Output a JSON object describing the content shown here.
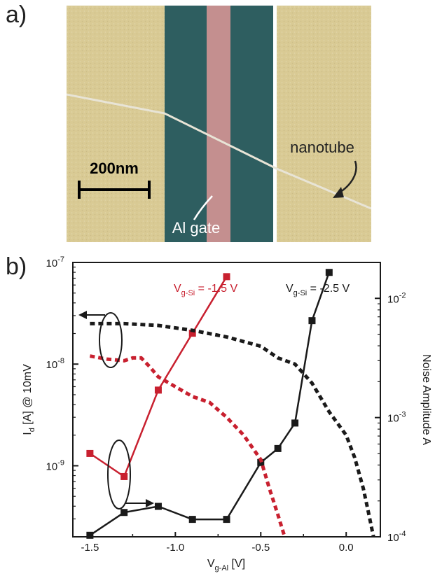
{
  "panel_a": {
    "label": "a)",
    "scale_bar_label": "200nm",
    "nanotube_label": "nanotube",
    "gate_label": "Al gate",
    "colors": {
      "electrode": "#d9ca94",
      "gap": "#2e5e60",
      "gate": "#c48f8f",
      "nanotube": "#e8e4d6"
    }
  },
  "panel_b": {
    "label": "b)"
  },
  "chart_data": {
    "type": "line",
    "title": "",
    "xlabel_main": "V",
    "xlabel_sub": "g-Al",
    "xlabel_unit": " [V]",
    "ylabel_left_main": "I",
    "ylabel_left_sub": "d",
    "ylabel_left_rest": " [A] @ 10mV",
    "ylabel_right": "Noise Amplitude A",
    "xlim": [
      -1.6,
      0.2
    ],
    "ylim_left": [
      2e-10,
      1e-07
    ],
    "ylim_right": [
      0.0001,
      0.02
    ],
    "log_y": true,
    "x_ticks": [
      -1.5,
      -1.0,
      -0.5,
      0.0
    ],
    "x_tick_labels": [
      "-1.5",
      "-1.0",
      "-0.5",
      "0.0"
    ],
    "y_left_ticks": [
      {
        "value": 1e-09,
        "base": "10",
        "exp": "-9"
      },
      {
        "value": 1e-08,
        "base": "10",
        "exp": "-8"
      },
      {
        "value": 1e-07,
        "base": "10",
        "exp": "-7"
      }
    ],
    "y_right_ticks": [
      {
        "value": 0.0001,
        "base": "10",
        "exp": "-4"
      },
      {
        "value": 0.001,
        "base": "10",
        "exp": "-3"
      },
      {
        "value": 0.01,
        "base": "10",
        "exp": "-2"
      }
    ],
    "grid": false,
    "series": [
      {
        "id": "noise-red",
        "axis": "right",
        "style": "solid-markers",
        "color": "#c8202f",
        "x": [
          -1.5,
          -1.3,
          -1.1,
          -0.9,
          -0.7
        ],
        "y": [
          0.0005,
          0.00032,
          0.0017,
          0.0051,
          0.0152
        ]
      },
      {
        "id": "noise-black",
        "axis": "right",
        "style": "solid-markers",
        "color": "#1a1a1a",
        "x": [
          -1.5,
          -1.3,
          -1.1,
          -0.9,
          -0.7,
          -0.5,
          -0.4,
          -0.3,
          -0.2,
          -0.1
        ],
        "y": [
          0.000103,
          0.00016,
          0.00018,
          0.00014,
          0.00014,
          0.00042,
          0.00055,
          0.0009,
          0.0065,
          0.0165
        ]
      },
      {
        "id": "current-red",
        "axis": "left",
        "style": "dashed",
        "color": "#c8202f",
        "x": [
          -1.5,
          -1.4,
          -1.3,
          -1.25,
          -1.2,
          -1.15,
          -1.1,
          -1.0,
          -0.9,
          -0.8,
          -0.7,
          -0.6,
          -0.5,
          -0.45,
          -0.4,
          -0.36
        ],
        "y": [
          1.2e-08,
          1.12e-08,
          1.08e-08,
          1.15e-08,
          1.15e-08,
          9.4e-09,
          7.5e-09,
          6e-09,
          4.8e-09,
          4.2e-09,
          3e-09,
          2e-09,
          1.15e-09,
          6e-10,
          3.3e-10,
          2e-10
        ]
      },
      {
        "id": "current-black",
        "axis": "left",
        "style": "dashed",
        "color": "#1a1a1a",
        "x": [
          -1.5,
          -1.3,
          -1.1,
          -0.9,
          -0.7,
          -0.5,
          -0.4,
          -0.3,
          -0.2,
          -0.1,
          0.0,
          0.05,
          0.1,
          0.13,
          0.16
        ],
        "y": [
          2.5e-08,
          2.5e-08,
          2.4e-08,
          2.15e-08,
          1.85e-08,
          1.5e-08,
          1.15e-08,
          1e-08,
          6.5e-09,
          3.4e-09,
          2e-09,
          1.2e-09,
          6e-10,
          3.5e-10,
          2e-10
        ]
      }
    ],
    "annotations": [
      {
        "id": "red",
        "main": "V",
        "sub": "g-Si",
        "rest": " = -1.5 V",
        "color": "#c8202f"
      },
      {
        "id": "black",
        "main": "V",
        "sub": "g-Si",
        "rest": " = -2.5 V",
        "color": "#1a1a1a"
      }
    ]
  }
}
